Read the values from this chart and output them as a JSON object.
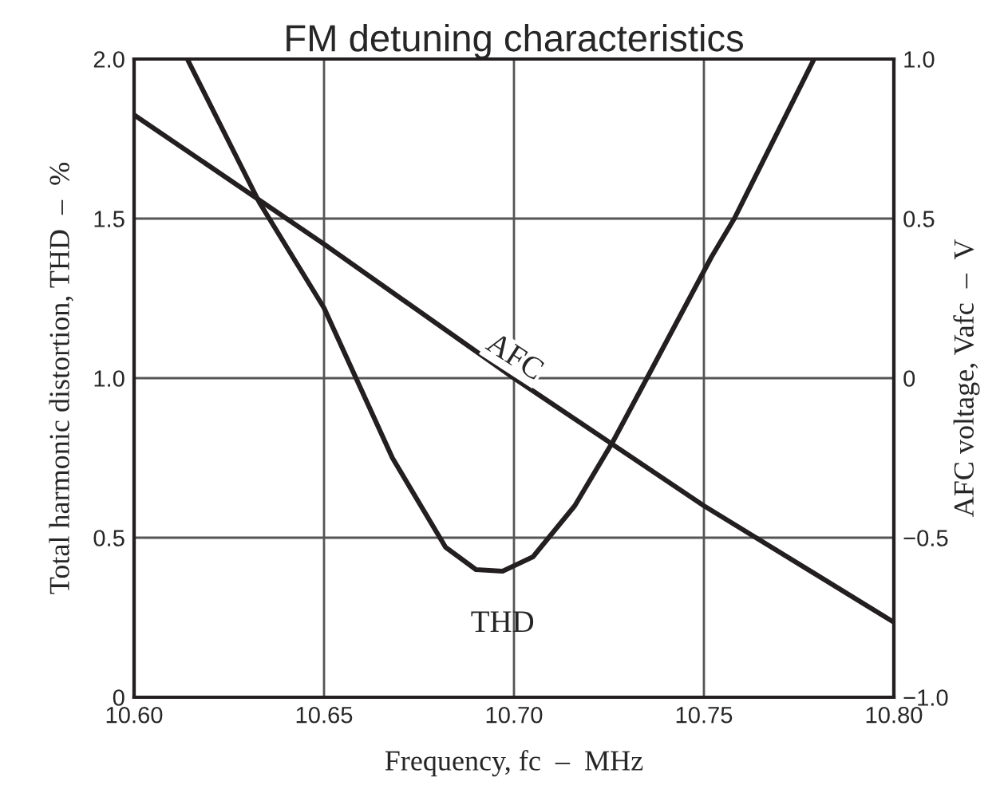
{
  "chart_data": {
    "type": "line",
    "title": "FM detuning characteristics",
    "xlabel": "Frequency, fc  –  MHz",
    "ylabel": "Total harmonic distortion, THD  –  %",
    "y2label": "AFC voltage, Vafc  –  V",
    "series": [
      {
        "name": "THD",
        "color": "#231f20",
        "x": [
          10.614,
          10.633,
          10.65,
          10.668,
          10.682,
          10.69,
          10.697,
          10.705,
          10.716,
          10.726,
          10.735,
          10.752,
          10.758,
          10.779
        ],
        "values": [
          2.0,
          1.55,
          1.22,
          0.75,
          0.47,
          0.4,
          0.395,
          0.44,
          0.6,
          0.8,
          1.0,
          1.38,
          1.5,
          2.0
        ]
      },
      {
        "name": "AFC",
        "color": "#231f20",
        "axis": "y2",
        "x": [
          10.6,
          10.65,
          10.7,
          10.75,
          10.8
        ],
        "values": [
          0.825,
          0.42,
          0.0,
          -0.4,
          -0.765
        ]
      }
    ],
    "xlim": [
      10.6,
      10.8
    ],
    "xticks": [
      {
        "value": 10.6,
        "label": "10.60"
      },
      {
        "value": 10.65,
        "label": "10.65"
      },
      {
        "value": 10.7,
        "label": "10.70"
      },
      {
        "value": 10.75,
        "label": "10.75"
      },
      {
        "value": 10.8,
        "label": "10.80"
      }
    ],
    "ylim": [
      0,
      2.0
    ],
    "yticks": [
      0,
      0.5,
      {
        "value": 1.0,
        "label": "1.0"
      },
      1.5,
      {
        "value": 2.0,
        "label": "2.0"
      }
    ],
    "y2lim": [
      -1.0,
      1.0
    ],
    "y2ticks": [
      {
        "value": -1.0,
        "label": "−1.0"
      },
      {
        "value": -0.5,
        "label": "−0.5"
      },
      0,
      0.5,
      {
        "value": 1.0,
        "label": "1.0"
      }
    ],
    "grid": true,
    "legend": false,
    "marker": "none",
    "line_style": "solid"
  }
}
